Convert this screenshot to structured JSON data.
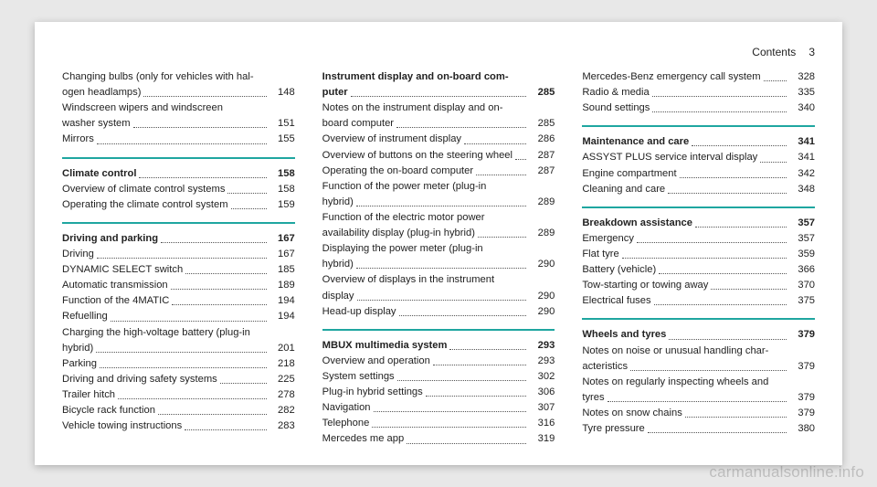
{
  "page": {
    "header_label": "Contents",
    "header_page": "3",
    "watermark": "carmanualsonline.info",
    "separator_color": "#1fa6a0"
  },
  "columns": [
    {
      "groups": [
        {
          "rows": [
            {
              "label_lines": [
                "Changing bulbs (only for vehicles with hal-",
                "ogen headlamps)"
              ],
              "page": "148",
              "bold": false
            },
            {
              "label_lines": [
                "Windscreen wipers and windscreen",
                "washer system"
              ],
              "page": "151",
              "bold": false
            },
            {
              "label_lines": [
                "Mirrors"
              ],
              "page": "155",
              "bold": false
            }
          ]
        },
        {
          "rows": [
            {
              "label_lines": [
                "Climate control"
              ],
              "page": "158",
              "bold": true
            },
            {
              "label_lines": [
                "Overview of climate control systems"
              ],
              "page": "158",
              "bold": false
            },
            {
              "label_lines": [
                "Operating the climate control system"
              ],
              "page": "159",
              "bold": false
            }
          ]
        },
        {
          "rows": [
            {
              "label_lines": [
                "Driving and parking"
              ],
              "page": "167",
              "bold": true
            },
            {
              "label_lines": [
                "Driving"
              ],
              "page": "167",
              "bold": false
            },
            {
              "label_lines": [
                "DYNAMIC SELECT switch"
              ],
              "page": "185",
              "bold": false
            },
            {
              "label_lines": [
                "Automatic transmission"
              ],
              "page": "189",
              "bold": false
            },
            {
              "label_lines": [
                "Function of the 4MATIC"
              ],
              "page": "194",
              "bold": false
            },
            {
              "label_lines": [
                "Refuelling"
              ],
              "page": "194",
              "bold": false
            },
            {
              "label_lines": [
                "Charging the high-voltage battery (plug-in",
                "hybrid)"
              ],
              "page": "201",
              "bold": false
            },
            {
              "label_lines": [
                "Parking"
              ],
              "page": "218",
              "bold": false
            },
            {
              "label_lines": [
                "Driving and driving safety systems"
              ],
              "page": "225",
              "bold": false
            },
            {
              "label_lines": [
                "Trailer hitch"
              ],
              "page": "278",
              "bold": false
            },
            {
              "label_lines": [
                "Bicycle rack function"
              ],
              "page": "282",
              "bold": false
            },
            {
              "label_lines": [
                "Vehicle towing instructions"
              ],
              "page": "283",
              "bold": false
            }
          ]
        }
      ]
    },
    {
      "groups": [
        {
          "rows": [
            {
              "label_lines": [
                "Instrument display and on-board com-",
                "puter"
              ],
              "page": "285",
              "bold": true
            },
            {
              "label_lines": [
                "Notes on the instrument display and on-",
                "board computer"
              ],
              "page": "285",
              "bold": false
            },
            {
              "label_lines": [
                "Overview of instrument display"
              ],
              "page": "286",
              "bold": false
            },
            {
              "label_lines": [
                "Overview of buttons on the steering wheel"
              ],
              "page": "287",
              "bold": false
            },
            {
              "label_lines": [
                "Operating the on-board computer"
              ],
              "page": "287",
              "bold": false
            },
            {
              "label_lines": [
                "Function of the power meter (plug-in",
                "hybrid)"
              ],
              "page": "289",
              "bold": false
            },
            {
              "label_lines": [
                "Function of the electric motor power",
                "availability display (plug-in hybrid)"
              ],
              "page": "289",
              "bold": false
            },
            {
              "label_lines": [
                "Displaying the power meter (plug-in",
                "hybrid)"
              ],
              "page": "290",
              "bold": false
            },
            {
              "label_lines": [
                "Overview of displays in the instrument",
                "display"
              ],
              "page": "290",
              "bold": false
            },
            {
              "label_lines": [
                "Head-up display"
              ],
              "page": "290",
              "bold": false
            }
          ]
        },
        {
          "rows": [
            {
              "label_lines": [
                "MBUX multimedia system"
              ],
              "page": "293",
              "bold": true
            },
            {
              "label_lines": [
                "Overview and operation"
              ],
              "page": "293",
              "bold": false
            },
            {
              "label_lines": [
                "System settings"
              ],
              "page": "302",
              "bold": false
            },
            {
              "label_lines": [
                "Plug-in hybrid settings"
              ],
              "page": "306",
              "bold": false
            },
            {
              "label_lines": [
                "Navigation"
              ],
              "page": "307",
              "bold": false
            },
            {
              "label_lines": [
                "Telephone"
              ],
              "page": "316",
              "bold": false
            },
            {
              "label_lines": [
                "Mercedes me app"
              ],
              "page": "319",
              "bold": false
            }
          ]
        }
      ]
    },
    {
      "groups": [
        {
          "rows": [
            {
              "label_lines": [
                "Mercedes-Benz emergency call system"
              ],
              "page": "328",
              "bold": false
            },
            {
              "label_lines": [
                "Radio & media"
              ],
              "page": "335",
              "bold": false
            },
            {
              "label_lines": [
                "Sound settings"
              ],
              "page": "340",
              "bold": false
            }
          ]
        },
        {
          "rows": [
            {
              "label_lines": [
                "Maintenance and care"
              ],
              "page": "341",
              "bold": true
            },
            {
              "label_lines": [
                "ASSYST PLUS service interval display"
              ],
              "page": "341",
              "bold": false
            },
            {
              "label_lines": [
                "Engine compartment"
              ],
              "page": "342",
              "bold": false
            },
            {
              "label_lines": [
                "Cleaning and care"
              ],
              "page": "348",
              "bold": false
            }
          ]
        },
        {
          "rows": [
            {
              "label_lines": [
                "Breakdown assistance"
              ],
              "page": "357",
              "bold": true
            },
            {
              "label_lines": [
                "Emergency"
              ],
              "page": "357",
              "bold": false
            },
            {
              "label_lines": [
                "Flat tyre"
              ],
              "page": "359",
              "bold": false
            },
            {
              "label_lines": [
                "Battery (vehicle)"
              ],
              "page": "366",
              "bold": false
            },
            {
              "label_lines": [
                "Tow-starting or towing away"
              ],
              "page": "370",
              "bold": false
            },
            {
              "label_lines": [
                "Electrical fuses"
              ],
              "page": "375",
              "bold": false
            }
          ]
        },
        {
          "rows": [
            {
              "label_lines": [
                "Wheels and tyres"
              ],
              "page": "379",
              "bold": true
            },
            {
              "label_lines": [
                "Notes on noise or unusual handling char-",
                "acteristics"
              ],
              "page": "379",
              "bold": false
            },
            {
              "label_lines": [
                "Notes on regularly inspecting wheels and",
                "tyres"
              ],
              "page": "379",
              "bold": false
            },
            {
              "label_lines": [
                "Notes on snow chains"
              ],
              "page": "379",
              "bold": false
            },
            {
              "label_lines": [
                "Tyre pressure"
              ],
              "page": "380",
              "bold": false
            }
          ]
        }
      ]
    }
  ]
}
